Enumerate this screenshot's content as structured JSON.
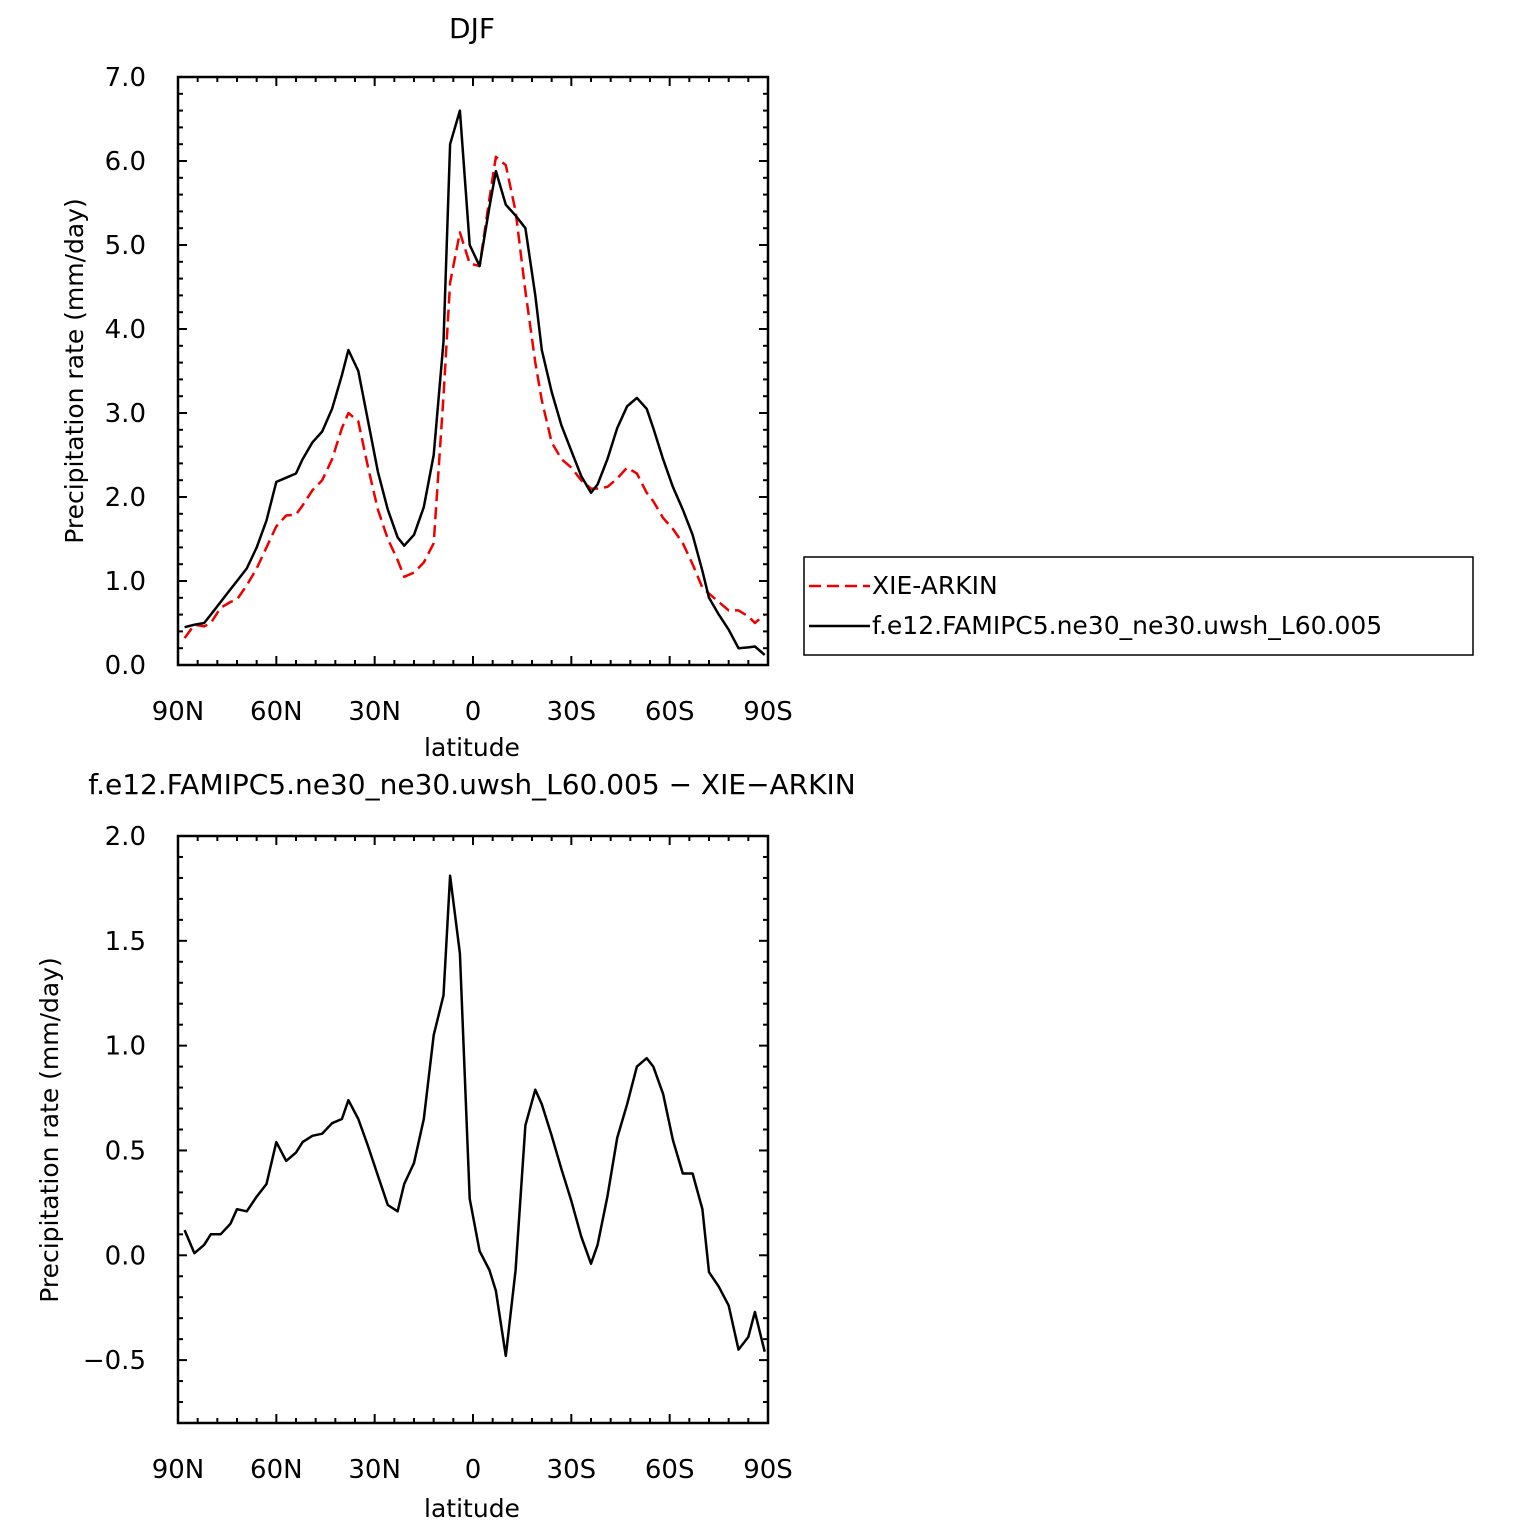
{
  "chart_data": [
    {
      "type": "line",
      "title": "DJF",
      "xlabel": "latitude",
      "ylabel": "Precipitation rate (mm/day)",
      "xlim": [
        -90,
        90
      ],
      "ylim": [
        0,
        7
      ],
      "x_ticks": [
        -90,
        -60,
        -30,
        0,
        30,
        60,
        90
      ],
      "x_tick_labels": [
        "90N",
        "60N",
        "30N",
        "0",
        "30S",
        "60S",
        "90S"
      ],
      "y_ticks": [
        0,
        1,
        2,
        3,
        4,
        5,
        6,
        7
      ],
      "y_tick_labels": [
        "0.0",
        "1.0",
        "2.0",
        "3.0",
        "4.0",
        "5.0",
        "6.0",
        "7.0"
      ],
      "grid": false,
      "legend": "right",
      "x": [
        -88,
        -85,
        -82,
        -80,
        -77,
        -74,
        -72,
        -69,
        -66,
        -63,
        -60,
        -57,
        -54,
        -52,
        -49,
        -46,
        -43,
        -40,
        -38,
        -35,
        -32,
        -29,
        -26,
        -23,
        -21,
        -18,
        -15,
        -12,
        -9,
        -7,
        -4,
        -1,
        2,
        5,
        7,
        10,
        13,
        16,
        19,
        21,
        24,
        27,
        30,
        33,
        36,
        38,
        41,
        44,
        47,
        50,
        53,
        55,
        58,
        61,
        64,
        67,
        70,
        72,
        75,
        78,
        81,
        84,
        86,
        89
      ],
      "series": [
        {
          "name": "XIE-ARKIN",
          "color": "#ee0000",
          "dash": "dashed",
          "values": [
            0.32,
            0.48,
            0.46,
            0.5,
            0.68,
            0.75,
            0.78,
            0.95,
            1.15,
            1.4,
            1.65,
            1.78,
            1.79,
            1.9,
            2.08,
            2.2,
            2.45,
            2.82,
            3.0,
            2.9,
            2.35,
            1.85,
            1.5,
            1.25,
            1.05,
            1.1,
            1.22,
            1.45,
            3.2,
            4.55,
            5.15,
            4.78,
            4.75,
            5.55,
            6.05,
            5.95,
            5.4,
            4.45,
            3.6,
            3.15,
            2.65,
            2.45,
            2.35,
            2.2,
            2.1,
            2.1,
            2.12,
            2.22,
            2.35,
            2.28,
            2.05,
            1.95,
            1.75,
            1.62,
            1.45,
            1.2,
            0.92,
            0.85,
            0.75,
            0.65,
            0.65,
            0.58,
            0.5,
            0.6
          ]
        },
        {
          "name": "f.e12.FAMIPC5.ne30_ne30.uwsh_L60.005",
          "color": "#000000",
          "dash": "solid",
          "values": [
            0.45,
            0.48,
            0.5,
            0.6,
            0.75,
            0.9,
            1.0,
            1.15,
            1.4,
            1.72,
            2.18,
            2.23,
            2.28,
            2.45,
            2.65,
            2.78,
            3.05,
            3.45,
            3.75,
            3.5,
            2.9,
            2.3,
            1.85,
            1.52,
            1.42,
            1.55,
            1.88,
            2.5,
            3.85,
            6.2,
            6.6,
            5.0,
            4.75,
            5.45,
            5.88,
            5.48,
            5.35,
            5.2,
            4.4,
            3.75,
            3.25,
            2.85,
            2.55,
            2.25,
            2.05,
            2.15,
            2.45,
            2.82,
            3.08,
            3.18,
            3.05,
            2.82,
            2.45,
            2.12,
            1.85,
            1.55,
            1.12,
            0.8,
            0.6,
            0.42,
            0.2,
            0.21,
            0.22,
            0.12
          ]
        }
      ]
    },
    {
      "type": "line",
      "title": "f.e12.FAMIPC5.ne30_ne30.uwsh_L60.005 − XIE−ARKIN",
      "xlabel": "latitude",
      "ylabel": "Precipitation rate (mm/day)",
      "xlim": [
        -90,
        90
      ],
      "ylim": [
        -0.8,
        2.0
      ],
      "x_ticks": [
        -90,
        -60,
        -30,
        0,
        30,
        60,
        90
      ],
      "x_tick_labels": [
        "90N",
        "60N",
        "30N",
        "0",
        "30S",
        "60S",
        "90S"
      ],
      "y_ticks": [
        -0.5,
        0,
        0.5,
        1.0,
        1.5,
        2.0
      ],
      "y_tick_labels": [
        "−0.5",
        "0.0",
        "0.5",
        "1.0",
        "1.5",
        "2.0"
      ],
      "grid": false,
      "x": [
        -88,
        -85,
        -82,
        -80,
        -77,
        -74,
        -72,
        -69,
        -66,
        -63,
        -60,
        -57,
        -54,
        -52,
        -49,
        -46,
        -43,
        -40,
        -38,
        -35,
        -32,
        -29,
        -26,
        -23,
        -21,
        -18,
        -15,
        -12,
        -9,
        -7,
        -4,
        -1,
        2,
        5,
        7,
        10,
        13,
        16,
        19,
        21,
        24,
        27,
        30,
        33,
        36,
        38,
        41,
        44,
        47,
        50,
        53,
        55,
        58,
        61,
        64,
        67,
        70,
        72,
        75,
        78,
        81,
        84,
        86,
        89
      ],
      "series": [
        {
          "color": "#000000",
          "dash": "solid",
          "values": [
            0.12,
            0.01,
            0.05,
            0.1,
            0.1,
            0.15,
            0.22,
            0.21,
            0.28,
            0.34,
            0.54,
            0.45,
            0.49,
            0.54,
            0.57,
            0.58,
            0.63,
            0.65,
            0.74,
            0.65,
            0.52,
            0.38,
            0.24,
            0.21,
            0.34,
            0.44,
            0.65,
            1.05,
            1.24,
            1.81,
            1.44,
            0.27,
            0.02,
            -0.07,
            -0.17,
            -0.48,
            -0.07,
            0.62,
            0.79,
            0.72,
            0.57,
            0.41,
            0.26,
            0.09,
            -0.04,
            0.05,
            0.28,
            0.56,
            0.72,
            0.9,
            0.94,
            0.9,
            0.77,
            0.55,
            0.39,
            0.39,
            0.22,
            -0.08,
            -0.15,
            -0.24,
            -0.45,
            -0.39,
            -0.27,
            -0.46
          ]
        }
      ]
    }
  ]
}
